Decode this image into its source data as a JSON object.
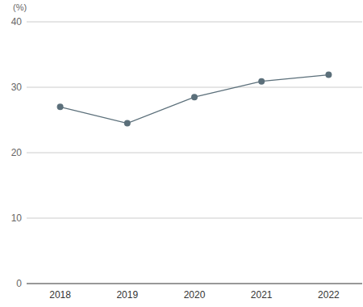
{
  "chart_data": {
    "type": "line",
    "ylabel": "(%)",
    "categories": [
      "2018",
      "2019",
      "2020",
      "2021",
      "2022"
    ],
    "values": [
      27,
      24.5,
      28.5,
      30.9,
      31.9
    ],
    "color": "#5b6f7a",
    "marker": "circle",
    "ylim": [
      0,
      40
    ],
    "yticks": [
      0,
      10,
      20,
      30,
      40
    ],
    "grid": true
  }
}
